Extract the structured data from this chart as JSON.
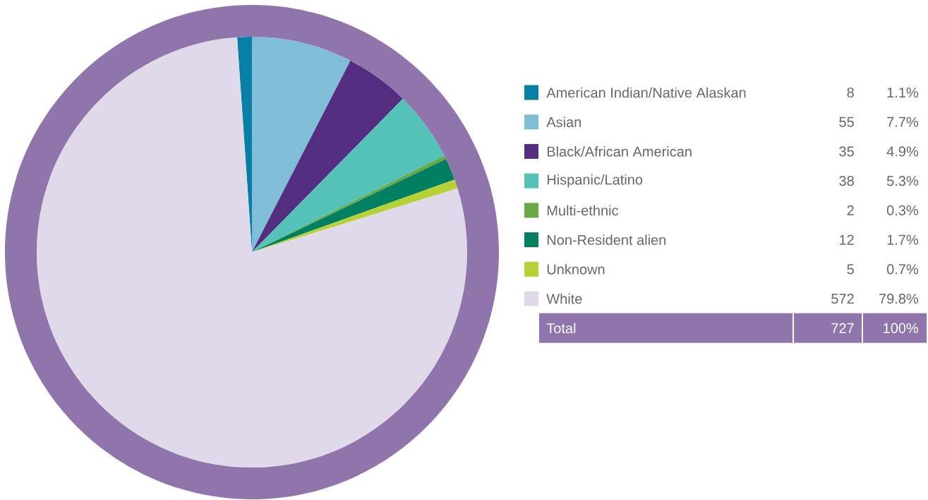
{
  "chart_data": {
    "type": "pie",
    "categories": [
      "American Indian/Native Alaskan",
      "Asian",
      "Black/African American",
      "Hispanic/Latino",
      "Multi-ethnic",
      "Non-Resident alien",
      "Unknown",
      "White"
    ],
    "values": [
      8,
      55,
      35,
      38,
      2,
      12,
      5,
      572
    ],
    "colors": [
      "#0a7fa6",
      "#80bdd6",
      "#522d80",
      "#55c2b9",
      "#6aaa46",
      "#008060",
      "#b5d135",
      "#e0d9ea"
    ],
    "value_labels": [
      "8",
      "55",
      "35",
      "38",
      "2",
      "12",
      "5",
      "572"
    ],
    "legend": "right",
    "totals": [
      "727",
      "100%"
    ],
    "annotations": [
      "Total",
      "1.1%",
      "7.7%",
      "4.9%",
      "5.3%",
      "0.3%",
      "1.7%",
      "0.7%",
      "79.8%"
    ]
  }
}
